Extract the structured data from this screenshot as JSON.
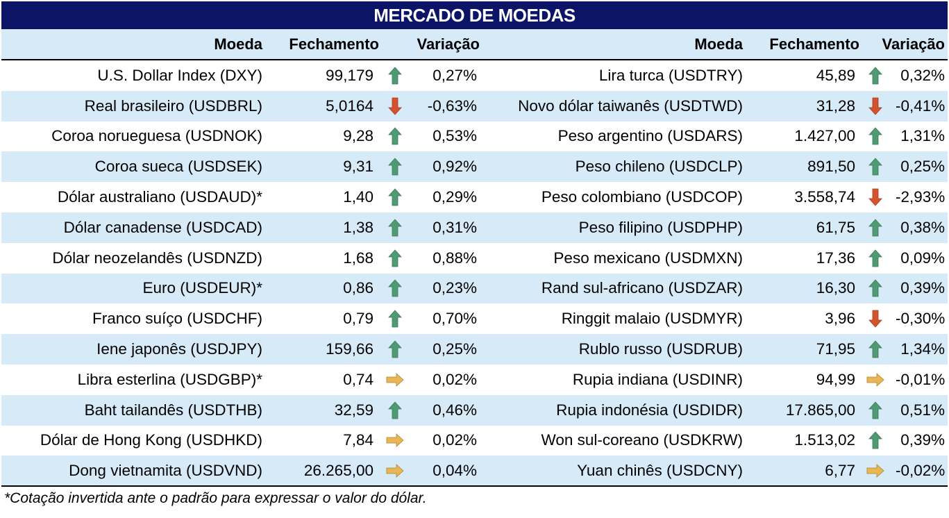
{
  "title": "MERCADO DE MOEDAS",
  "headers": {
    "moeda": "Moeda",
    "fechamento": "Fechamento",
    "variacao": "Variação"
  },
  "colors": {
    "title_bg": "#0b1466",
    "band": "#d6eaf8",
    "up": "#4e9a72",
    "down": "#d4532c",
    "flat": "#e8b654"
  },
  "left": [
    {
      "name": "U.S. Dollar Index (DXY)",
      "close": "99,179",
      "trend": "up",
      "var": "0,27%"
    },
    {
      "name": "Real brasileiro (USDBRL)",
      "close": "5,0164",
      "trend": "down",
      "var": "-0,63%"
    },
    {
      "name": "Coroa norueguesa (USDNOK)",
      "close": "9,28",
      "trend": "up",
      "var": "0,53%"
    },
    {
      "name": "Coroa sueca (USDSEK)",
      "close": "9,31",
      "trend": "up",
      "var": "0,92%"
    },
    {
      "name": "Dólar australiano (USDAUD)*",
      "close": "1,40",
      "trend": "up",
      "var": "0,29%"
    },
    {
      "name": "Dólar canadense (USDCAD)",
      "close": "1,38",
      "trend": "up",
      "var": "0,31%"
    },
    {
      "name": "Dólar neozelandês (USDNZD)",
      "close": "1,68",
      "trend": "up",
      "var": "0,88%"
    },
    {
      "name": "Euro (USDEUR)*",
      "close": "0,86",
      "trend": "up",
      "var": "0,23%"
    },
    {
      "name": "Franco suíço (USDCHF)",
      "close": "0,79",
      "trend": "up",
      "var": "0,70%"
    },
    {
      "name": "Iene japonês (USDJPY)",
      "close": "159,66",
      "trend": "up",
      "var": "0,25%"
    },
    {
      "name": "Libra esterlina (USDGBP)*",
      "close": "0,74",
      "trend": "flat",
      "var": "0,02%"
    },
    {
      "name": "Baht tailandês (USDTHB)",
      "close": "32,59",
      "trend": "up",
      "var": "0,46%"
    },
    {
      "name": "Dólar de Hong Kong (USDHKD)",
      "close": "7,84",
      "trend": "flat",
      "var": "0,02%"
    },
    {
      "name": "Dong vietnamita (USDVND)",
      "close": "26.265,00",
      "trend": "flat",
      "var": "0,04%"
    }
  ],
  "right": [
    {
      "name": "Lira turca (USDTRY)",
      "close": "45,89",
      "trend": "up",
      "var": "0,32%"
    },
    {
      "name": "Novo dólar taiwanês (USDTWD)",
      "close": "31,28",
      "trend": "down",
      "var": "-0,41%"
    },
    {
      "name": "Peso argentino (USDARS)",
      "close": "1.427,00",
      "trend": "up",
      "var": "1,31%"
    },
    {
      "name": "Peso chileno (USDCLP)",
      "close": "891,50",
      "trend": "up",
      "var": "0,25%"
    },
    {
      "name": "Peso colombiano (USDCOP)",
      "close": "3.558,74",
      "trend": "down",
      "var": "-2,93%"
    },
    {
      "name": "Peso filipino (USDPHP)",
      "close": "61,75",
      "trend": "up",
      "var": "0,38%"
    },
    {
      "name": "Peso mexicano (USDMXN)",
      "close": "17,36",
      "trend": "up",
      "var": "0,09%"
    },
    {
      "name": "Rand sul-africano (USDZAR)",
      "close": "16,30",
      "trend": "up",
      "var": "0,39%"
    },
    {
      "name": "Ringgit malaio (USDMYR)",
      "close": "3,96",
      "trend": "down",
      "var": "-0,30%"
    },
    {
      "name": "Rublo russo (USDRUB)",
      "close": "71,95",
      "trend": "up",
      "var": "1,34%"
    },
    {
      "name": "Rupia indiana (USDINR)",
      "close": "94,99",
      "trend": "flat",
      "var": "-0,01%"
    },
    {
      "name": "Rupia indonésia (USDIDR)",
      "close": "17.865,00",
      "trend": "up",
      "var": "0,51%"
    },
    {
      "name": "Won sul-coreano (USDKRW)",
      "close": "1.513,02",
      "trend": "up",
      "var": "0,39%"
    },
    {
      "name": "Yuan chinês (USDCNY)",
      "close": "6,77",
      "trend": "flat",
      "var": "-0,02%"
    }
  ],
  "footnote": "*Cotação invertida ante o padrão para expressar o valor do dólar."
}
